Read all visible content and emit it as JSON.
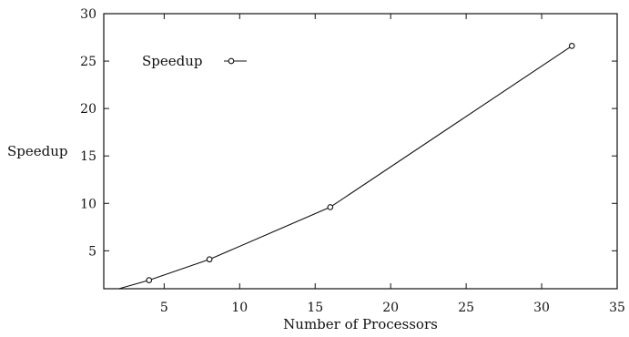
{
  "chart_data": {
    "type": "line",
    "title": "",
    "xlabel": "Number of Processors",
    "ylabel": "Speedup",
    "xlim": [
      1,
      35
    ],
    "ylim": [
      1,
      30
    ],
    "xticks": [
      5,
      10,
      15,
      20,
      25,
      30,
      35
    ],
    "yticks": [
      5,
      10,
      15,
      20,
      25,
      30
    ],
    "grid": false,
    "legend_position": "top-left",
    "series": [
      {
        "name": "Speedup",
        "marker": "circle",
        "color": "#111111",
        "x": [
          2,
          4,
          8,
          16,
          32
        ],
        "y": [
          1,
          1.9,
          4.1,
          9.6,
          26.6
        ]
      }
    ]
  }
}
